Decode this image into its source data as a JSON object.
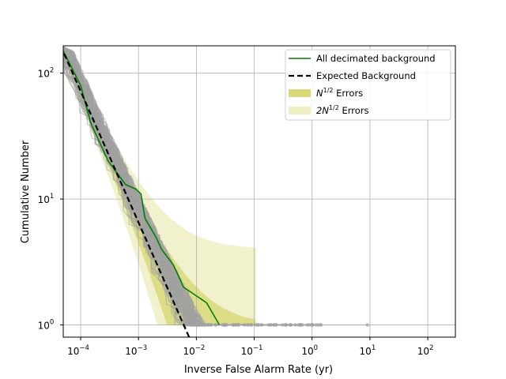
{
  "chart_data": {
    "type": "line",
    "title": "",
    "xlabel": "Inverse False Alarm Rate (yr)",
    "ylabel": "Cumulative Number",
    "x_scale": "log",
    "y_scale": "log",
    "xlim": [
      5e-05,
      300
    ],
    "ylim": [
      0.8,
      165
    ],
    "grid": true,
    "legend_position": "top-right",
    "x_ticks": [
      {
        "value": 0.0001,
        "base": "10",
        "exp": "−4"
      },
      {
        "value": 0.001,
        "base": "10",
        "exp": "−3"
      },
      {
        "value": 0.01,
        "base": "10",
        "exp": "−2"
      },
      {
        "value": 0.1,
        "base": "10",
        "exp": "−1"
      },
      {
        "value": 1,
        "base": "10",
        "exp": "0"
      },
      {
        "value": 10,
        "base": "10",
        "exp": "1"
      },
      {
        "value": 100,
        "base": "10",
        "exp": "2"
      }
    ],
    "y_ticks": [
      {
        "value": 1,
        "base": "10",
        "exp": "0"
      },
      {
        "value": 10,
        "base": "10",
        "exp": "1"
      },
      {
        "value": 100,
        "base": "10",
        "exp": "2"
      }
    ],
    "legend": [
      {
        "label": "All decimated background",
        "kind": "line",
        "color": "#008000"
      },
      {
        "label": "Expected Background",
        "kind": "dashed",
        "color": "#000000"
      },
      {
        "label_base": "N",
        "label_sup": "1/2",
        "label_rest": " Errors",
        "kind": "patch",
        "color": "#d9d97a"
      },
      {
        "label_base": "2N",
        "label_sup": "1/2",
        "label_rest": " Errors",
        "kind": "patch",
        "color": "#efefc4"
      }
    ],
    "series": [
      {
        "name": "All decimated background",
        "color": "#008000",
        "points": [
          [
            4.5e-05,
            165
          ],
          [
            0.0001,
            80
          ],
          [
            0.00015,
            40
          ],
          [
            0.0003,
            20
          ],
          [
            0.0006,
            13
          ],
          [
            0.0009,
            12
          ],
          [
            0.0011,
            11
          ],
          [
            0.0013,
            7
          ],
          [
            0.002,
            5
          ],
          [
            0.0025,
            4
          ],
          [
            0.004,
            3
          ],
          [
            0.006,
            2
          ],
          [
            0.015,
            1.5
          ],
          [
            0.025,
            1
          ]
        ]
      },
      {
        "name": "Expected Background",
        "color": "#000000",
        "dashed": true,
        "points": [
          [
            4.5e-05,
            165
          ],
          [
            0.0075,
            0.8
          ]
        ]
      }
    ],
    "background_trials": {
      "color": "#a0a0a0",
      "count": 90,
      "n_start": 165,
      "x_start": 4.5e-05,
      "tail_x_min": 0.002,
      "tail_x_max": 2.0,
      "far_outlier_x": 9.0
    },
    "error_bands": {
      "n_half_color": "#d9d97a",
      "two_n_half_color": "#efefc4"
    }
  }
}
